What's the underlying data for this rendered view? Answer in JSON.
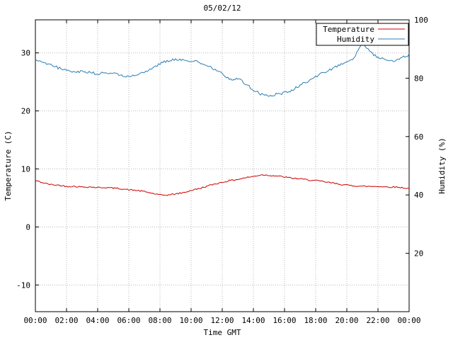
{
  "window": {
    "title": "05/02/12"
  },
  "colors": {
    "temperature": "#cc0000",
    "humidity": "#2e7eb3",
    "grid": "#b8b8b8",
    "border": "#000000",
    "background": "#ffffff"
  },
  "chart_data": {
    "type": "line",
    "title": "05/02/12",
    "xlabel": "Time GMT",
    "ylabel_left": "Temperature (C)",
    "ylabel_right": "Humidity (%)",
    "grid": true,
    "legend_position": "top-right",
    "x_start": 0,
    "x_end": 24,
    "x_step": 0.5,
    "x_tick_hours": [
      0,
      2,
      4,
      6,
      8,
      10,
      12,
      14,
      16,
      18,
      20,
      22,
      24
    ],
    "x_tick_labels": [
      "00:00",
      "02:00",
      "04:00",
      "06:00",
      "08:00",
      "10:00",
      "12:00",
      "14:00",
      "16:00",
      "18:00",
      "20:00",
      "22:00",
      "00:00"
    ],
    "left_axis": {
      "ticks": [
        -10,
        0,
        10,
        20,
        30
      ],
      "range": [
        -14.6,
        35.7
      ]
    },
    "right_axis": {
      "ticks": [
        20,
        40,
        60,
        80,
        100
      ],
      "range": [
        0,
        100
      ]
    },
    "series": [
      {
        "name": "Temperature",
        "axis": "left",
        "color": "#cc0000",
        "noise": 0.12,
        "values": [
          8.0,
          7.6,
          7.3,
          7.2,
          7.0,
          7.0,
          6.9,
          6.9,
          6.8,
          6.8,
          6.7,
          6.6,
          6.4,
          6.3,
          6.1,
          5.8,
          5.5,
          5.5,
          5.7,
          5.9,
          6.3,
          6.6,
          7.0,
          7.4,
          7.7,
          8.0,
          8.2,
          8.5,
          8.7,
          9.0,
          8.9,
          8.8,
          8.6,
          8.4,
          8.3,
          8.1,
          8.0,
          7.8,
          7.6,
          7.4,
          7.2,
          7.1,
          7.0,
          7.0,
          7.0,
          6.9,
          6.9,
          6.8,
          6.6
        ]
      },
      {
        "name": "Humidity",
        "axis": "right",
        "color": "#2e7eb3",
        "noise": 0.45,
        "values": [
          86.5,
          85.5,
          84.5,
          83.5,
          83.0,
          82.0,
          82.5,
          82.0,
          81.5,
          82.0,
          81.5,
          81.0,
          80.5,
          81.0,
          82.0,
          83.5,
          85.0,
          86.0,
          86.5,
          86.5,
          86.0,
          85.5,
          84.5,
          83.0,
          81.5,
          79.5,
          80.0,
          78.0,
          76.0,
          74.5,
          74.0,
          74.5,
          75.0,
          76.0,
          77.5,
          79.0,
          80.5,
          82.0,
          83.0,
          84.5,
          85.5,
          87.0,
          92.5,
          89.0,
          87.0,
          86.5,
          86.0,
          87.0,
          88.0
        ]
      }
    ]
  }
}
